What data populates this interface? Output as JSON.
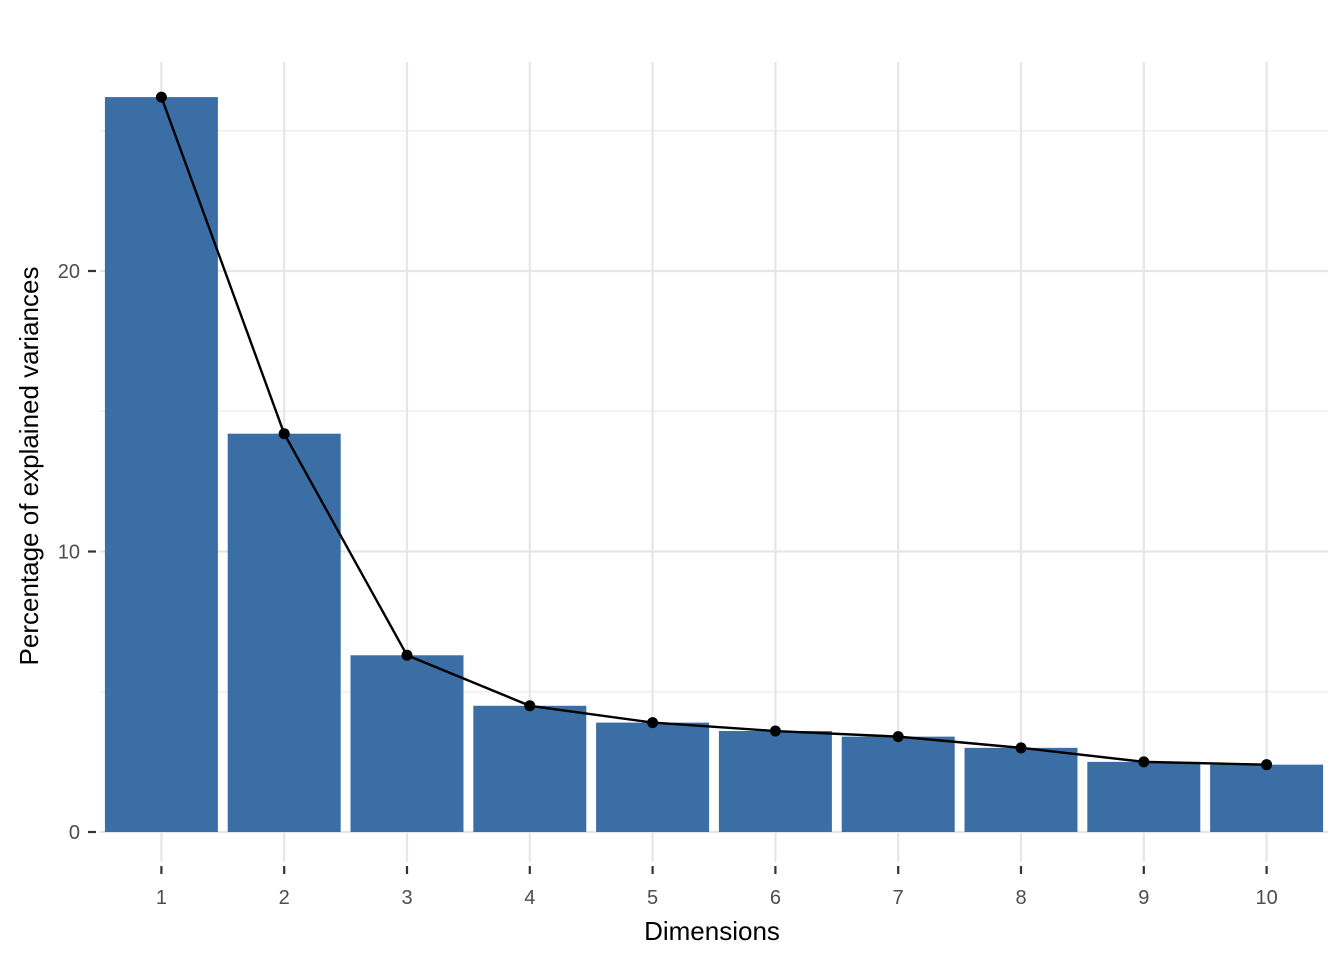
{
  "chart_data": {
    "type": "bar",
    "title": "",
    "xlabel": "Dimensions",
    "ylabel": "Percentage of explained variances",
    "categories": [
      "1",
      "2",
      "3",
      "4",
      "5",
      "6",
      "7",
      "8",
      "9",
      "10"
    ],
    "values": [
      26.2,
      14.2,
      6.3,
      4.5,
      3.9,
      3.6,
      3.4,
      3.0,
      2.5,
      2.4
    ],
    "line_overlay": true,
    "y_ticks": [
      "0",
      "10",
      "20"
    ],
    "ylim": [
      0,
      27.5
    ],
    "grid": true,
    "legend": "none",
    "colors": {
      "bar": "#3A6EA5",
      "line": "#000000",
      "point": "#000000",
      "grid": "#E6E6E6"
    }
  }
}
